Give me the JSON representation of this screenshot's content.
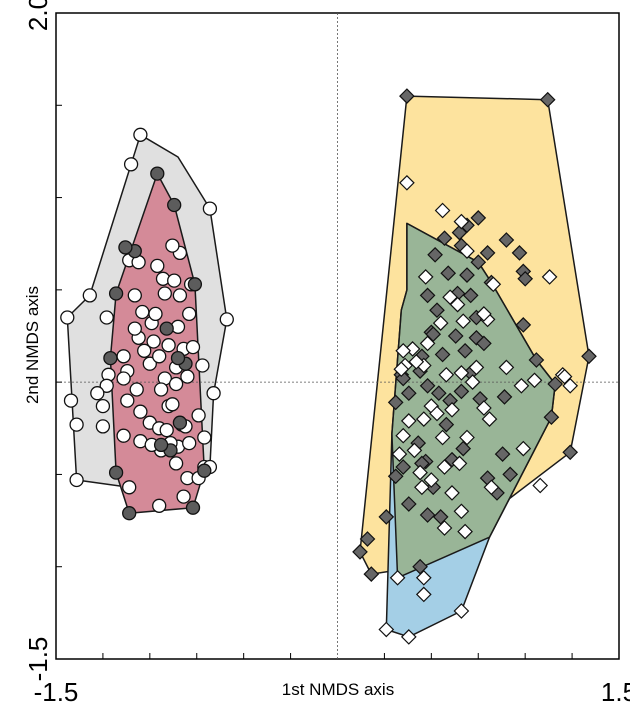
{
  "chart_data": {
    "type": "scatter",
    "title": "",
    "xlabel": "1st NMDS axis",
    "ylabel": "2nd NMDS axis",
    "xlim": [
      -1.5,
      1.5
    ],
    "ylim": [
      -1.5,
      2.0
    ],
    "x_tick_labels": [
      {
        "value": -1.5,
        "label": "-1.5"
      },
      {
        "value": 1.5,
        "label": "1.5"
      }
    ],
    "y_tick_labels": [
      {
        "value": 2.0,
        "label": "2.0"
      },
      {
        "value": -1.5,
        "label": "-1.5"
      }
    ],
    "minor_ticks_x": [
      -1.25,
      -1.0,
      -0.75,
      -0.5,
      -0.25,
      0.25,
      0.5,
      0.75,
      1.0,
      1.25
    ],
    "minor_ticks_y": [
      -1.0,
      -0.5,
      0.0,
      0.5,
      1.0,
      1.5
    ],
    "reference_lines": {
      "x": 0,
      "y": 0
    },
    "grid": false,
    "legend": "none",
    "hulls": [
      {
        "fill": "#e0e0e0",
        "points": [
          [
            -1.05,
            1.34
          ],
          [
            -0.85,
            1.22
          ],
          [
            -0.68,
            0.94
          ],
          [
            -0.59,
            0.34
          ],
          [
            -0.66,
            -0.06
          ],
          [
            -0.68,
            -0.46
          ],
          [
            -0.82,
            -0.62
          ],
          [
            -1.11,
            -0.71
          ],
          [
            -1.11,
            -0.57
          ],
          [
            -1.39,
            -0.53
          ],
          [
            -1.44,
            0.35
          ],
          [
            -1.32,
            0.47
          ],
          [
            -1.1,
            1.18
          ]
        ]
      },
      {
        "fill": "#d48a98",
        "points": [
          [
            -0.96,
            1.13
          ],
          [
            -0.87,
            0.96
          ],
          [
            -0.76,
            0.53
          ],
          [
            -0.71,
            -0.48
          ],
          [
            -0.77,
            -0.68
          ],
          [
            -1.11,
            -0.71
          ],
          [
            -1.18,
            -0.49
          ],
          [
            -1.21,
            0.13
          ],
          [
            -1.18,
            0.48
          ]
        ]
      },
      {
        "fill": "#fde39e",
        "points": [
          [
            0.37,
            1.55
          ],
          [
            1.12,
            1.53
          ],
          [
            1.34,
            0.14
          ],
          [
            1.24,
            -0.38
          ],
          [
            0.44,
            -1.0
          ],
          [
            0.18,
            -1.04
          ],
          [
            0.12,
            -0.92
          ]
        ]
      },
      {
        "fill": "#a4cfe6",
        "points": [
          [
            0.37,
            0.86
          ],
          [
            0.75,
            0.65
          ],
          [
            0.82,
            0.54
          ],
          [
            1.06,
            0.12
          ],
          [
            1.16,
            -0.01
          ],
          [
            1.14,
            -0.19
          ],
          [
            0.81,
            -0.84
          ],
          [
            0.66,
            -1.24
          ],
          [
            0.38,
            -1.38
          ],
          [
            0.26,
            -1.34
          ],
          [
            0.29,
            -0.28
          ],
          [
            0.34,
            0.39
          ],
          [
            0.37,
            0.5
          ],
          [
            0.37,
            0.86
          ]
        ]
      },
      {
        "fill": "#8fa055",
        "fill_opacity": 0.55,
        "points": [
          [
            0.37,
            0.86
          ],
          [
            0.75,
            0.65
          ],
          [
            0.82,
            0.54
          ],
          [
            1.06,
            0.12
          ],
          [
            1.16,
            -0.01
          ],
          [
            1.14,
            -0.19
          ],
          [
            0.81,
            -0.84
          ],
          [
            0.32,
            -1.06
          ],
          [
            0.29,
            -0.28
          ],
          [
            0.34,
            0.39
          ],
          [
            0.37,
            0.5
          ]
        ]
      }
    ],
    "series": [
      {
        "marker": "circle",
        "fill": "#ffffff",
        "points": [
          [
            -1.05,
            1.34
          ],
          [
            -1.23,
            0.35
          ],
          [
            -1.44,
            0.35
          ],
          [
            -1.32,
            0.47
          ],
          [
            -1.22,
            0.04
          ],
          [
            -1.23,
            -0.02
          ],
          [
            -1.25,
            -0.13
          ],
          [
            -1.25,
            -0.24
          ],
          [
            -1.28,
            -0.06
          ],
          [
            -1.39,
            -0.23
          ],
          [
            -1.42,
            -0.1
          ],
          [
            -1.39,
            -0.53
          ],
          [
            -1.11,
            0.66
          ],
          [
            -1.06,
            0.65
          ],
          [
            -1.04,
            0.38
          ],
          [
            -0.99,
            0.32
          ],
          [
            -0.96,
            0.63
          ],
          [
            -0.93,
            0.56
          ],
          [
            -1.14,
            0.14
          ],
          [
            -1.06,
            0.24
          ],
          [
            -1.12,
            0.06
          ],
          [
            -1.07,
            -0.04
          ],
          [
            -1.12,
            -0.1
          ],
          [
            -1.05,
            -0.16
          ],
          [
            -1.0,
            -0.22
          ],
          [
            -1.05,
            -0.32
          ],
          [
            -0.95,
            -0.25
          ],
          [
            -0.9,
            -0.13
          ],
          [
            -0.92,
            0.02
          ],
          [
            -0.86,
            0.08
          ],
          [
            -0.85,
            0.3
          ],
          [
            -0.87,
            0.55
          ],
          [
            -0.92,
            0.48
          ],
          [
            -0.98,
            0.22
          ],
          [
            -1.03,
            0.17
          ],
          [
            -1.08,
            0.29
          ],
          [
            -1.0,
            0.1
          ],
          [
            -0.94,
            -0.04
          ],
          [
            -0.88,
            -0.12
          ],
          [
            -0.83,
            -0.23
          ],
          [
            -0.85,
            -0.35
          ],
          [
            -0.89,
            -0.33
          ],
          [
            -0.91,
            -0.26
          ],
          [
            -0.94,
            -0.37
          ],
          [
            -0.99,
            -0.34
          ],
          [
            -0.86,
            -0.01
          ],
          [
            -0.8,
            0.03
          ],
          [
            -0.82,
            0.18
          ],
          [
            -0.79,
            0.37
          ],
          [
            -0.84,
            0.47
          ],
          [
            -1.14,
            -0.29
          ],
          [
            -0.86,
            -0.44
          ],
          [
            -0.8,
            -0.52
          ],
          [
            -0.74,
            -0.52
          ],
          [
            -0.71,
            -0.46
          ],
          [
            -0.81,
            -0.24
          ],
          [
            -0.68,
            0.94
          ],
          [
            -0.59,
            0.34
          ],
          [
            -0.66,
            -0.06
          ],
          [
            -0.72,
            0.09
          ],
          [
            -0.68,
            -0.46
          ],
          [
            -0.82,
            -0.62
          ],
          [
            -1.11,
            -0.57
          ],
          [
            -0.95,
            -0.67
          ],
          [
            -0.84,
            0.7
          ],
          [
            -0.88,
            0.74
          ],
          [
            -0.78,
            0.53
          ],
          [
            -1.08,
            0.47
          ],
          [
            -1.1,
            1.18
          ],
          [
            -0.97,
            0.37
          ],
          [
            -0.95,
            0.14
          ],
          [
            -0.9,
            0.2
          ],
          [
            -0.77,
            0.19
          ],
          [
            -0.74,
            -0.18
          ],
          [
            -0.71,
            -0.3
          ],
          [
            -1.14,
            0.02
          ],
          [
            -0.79,
            -0.33
          ]
        ]
      },
      {
        "marker": "circle",
        "fill": "#5c5c5c",
        "points": [
          [
            -0.96,
            1.13
          ],
          [
            -0.87,
            0.96
          ],
          [
            -1.18,
            0.48
          ],
          [
            -1.21,
            0.13
          ],
          [
            -1.18,
            -0.49
          ],
          [
            -1.11,
            -0.71
          ],
          [
            -0.77,
            -0.68
          ],
          [
            -0.71,
            -0.48
          ],
          [
            -0.76,
            0.53
          ],
          [
            -1.08,
            0.71
          ],
          [
            -1.13,
            0.73
          ],
          [
            -0.89,
            -0.37
          ],
          [
            -0.84,
            -0.22
          ],
          [
            -0.91,
            0.29
          ],
          [
            -0.81,
            0.1
          ],
          [
            -0.94,
            -0.34
          ],
          [
            -0.85,
            0.13
          ]
        ]
      },
      {
        "marker": "diamond",
        "fill": "#666666",
        "points": [
          [
            0.37,
            1.55
          ],
          [
            1.12,
            1.53
          ],
          [
            1.34,
            0.14
          ],
          [
            1.24,
            -0.38
          ],
          [
            0.44,
            -1.0
          ],
          [
            0.18,
            -1.04
          ],
          [
            0.12,
            -0.92
          ],
          [
            0.75,
            0.65
          ],
          [
            0.82,
            0.54
          ],
          [
            1.06,
            0.12
          ],
          [
            1.16,
            -0.01
          ],
          [
            1.14,
            -0.19
          ],
          [
            0.52,
            0.69
          ],
          [
            0.59,
            0.59
          ],
          [
            0.48,
            0.47
          ],
          [
            0.53,
            0.39
          ],
          [
            0.5,
            0.27
          ],
          [
            0.45,
            0.14
          ],
          [
            0.44,
            0.06
          ],
          [
            0.38,
            -0.06
          ],
          [
            0.34,
            0.04
          ],
          [
            0.31,
            -0.11
          ],
          [
            0.43,
            -0.33
          ],
          [
            0.47,
            -0.43
          ],
          [
            0.51,
            -0.57
          ],
          [
            0.55,
            -0.73
          ],
          [
            0.35,
            -0.46
          ],
          [
            0.38,
            -0.66
          ],
          [
            0.26,
            -0.73
          ],
          [
            0.16,
            -0.85
          ],
          [
            0.69,
            0.85
          ],
          [
            0.75,
            0.89
          ],
          [
            0.8,
            0.7
          ],
          [
            0.66,
            0.74
          ],
          [
            0.69,
            0.58
          ],
          [
            0.64,
            0.48
          ],
          [
            0.71,
            0.47
          ],
          [
            0.74,
            0.24
          ],
          [
            0.68,
            0.17
          ],
          [
            0.71,
            0.05
          ],
          [
            0.66,
            -0.05
          ],
          [
            0.6,
            -0.1
          ],
          [
            0.54,
            -0.06
          ],
          [
            0.48,
            -0.02
          ],
          [
            0.56,
            0.15
          ],
          [
            0.51,
            0.26
          ],
          [
            0.63,
            0.25
          ],
          [
            0.74,
            0.35
          ],
          [
            0.9,
            0.77
          ],
          [
            0.97,
            0.7
          ],
          [
            0.99,
            0.6
          ],
          [
            1.0,
            0.56
          ],
          [
            0.99,
            0.31
          ],
          [
            0.89,
            -0.08
          ],
          [
            0.88,
            -0.39
          ],
          [
            0.92,
            -0.5
          ],
          [
            0.85,
            -0.6
          ],
          [
            0.8,
            -0.52
          ],
          [
            0.67,
            -0.36
          ],
          [
            0.58,
            -0.23
          ],
          [
            0.45,
            -0.44
          ],
          [
            0.31,
            -0.51
          ],
          [
            0.78,
            0.21
          ],
          [
            0.76,
            -0.09
          ],
          [
            0.61,
            -0.42
          ],
          [
            0.48,
            -0.72
          ],
          [
            0.65,
            0.81
          ],
          [
            0.57,
            0.78
          ],
          [
            0.35,
            0.02
          ]
        ]
      },
      {
        "marker": "diamond",
        "fill": "#ffffff",
        "points": [
          [
            0.37,
            1.08
          ],
          [
            0.56,
            0.93
          ],
          [
            0.69,
            0.71
          ],
          [
            0.66,
            0.87
          ],
          [
            0.47,
            0.57
          ],
          [
            0.6,
            0.46
          ],
          [
            0.64,
            0.42
          ],
          [
            0.55,
            0.32
          ],
          [
            0.48,
            0.21
          ],
          [
            0.4,
            0.18
          ],
          [
            0.36,
            0.09
          ],
          [
            0.34,
            0.07
          ],
          [
            0.35,
            0.17
          ],
          [
            0.46,
            0.09
          ],
          [
            0.58,
            0.04
          ],
          [
            0.66,
            0.05
          ],
          [
            0.72,
            0.0
          ],
          [
            0.61,
            -0.15
          ],
          [
            0.5,
            -0.13
          ],
          [
            0.46,
            -0.2
          ],
          [
            0.38,
            -0.21
          ],
          [
            0.35,
            -0.29
          ],
          [
            0.33,
            -0.39
          ],
          [
            0.41,
            -0.37
          ],
          [
            0.44,
            -0.49
          ],
          [
            0.45,
            -0.57
          ],
          [
            0.5,
            -0.53
          ],
          [
            0.57,
            -0.46
          ],
          [
            0.65,
            -0.44
          ],
          [
            0.61,
            -0.6
          ],
          [
            0.57,
            -0.79
          ],
          [
            0.66,
            -0.7
          ],
          [
            0.69,
            -0.3
          ],
          [
            0.78,
            -0.14
          ],
          [
            0.81,
            -0.2
          ],
          [
            0.74,
            0.08
          ],
          [
            0.83,
            0.53
          ],
          [
            0.8,
            0.34
          ],
          [
            0.9,
            0.08
          ],
          [
            0.99,
            -0.36
          ],
          [
            1.08,
            -0.56
          ],
          [
            1.13,
            0.57
          ],
          [
            1.2,
            0.04
          ],
          [
            1.24,
            -0.02
          ],
          [
            1.21,
            0.03
          ],
          [
            1.05,
            0.01
          ],
          [
            0.98,
            -0.02
          ],
          [
            0.82,
            -0.57
          ],
          [
            0.68,
            -0.81
          ],
          [
            0.46,
            -1.06
          ],
          [
            0.32,
            -1.06
          ],
          [
            0.46,
            -1.15
          ],
          [
            0.38,
            -1.38
          ],
          [
            0.26,
            -1.34
          ],
          [
            0.66,
            -1.24
          ],
          [
            0.53,
            -0.17
          ],
          [
            0.56,
            -0.3
          ],
          [
            0.78,
            0.37
          ],
          [
            0.67,
            0.33
          ],
          [
            0.42,
            0.11
          ]
        ]
      }
    ]
  }
}
